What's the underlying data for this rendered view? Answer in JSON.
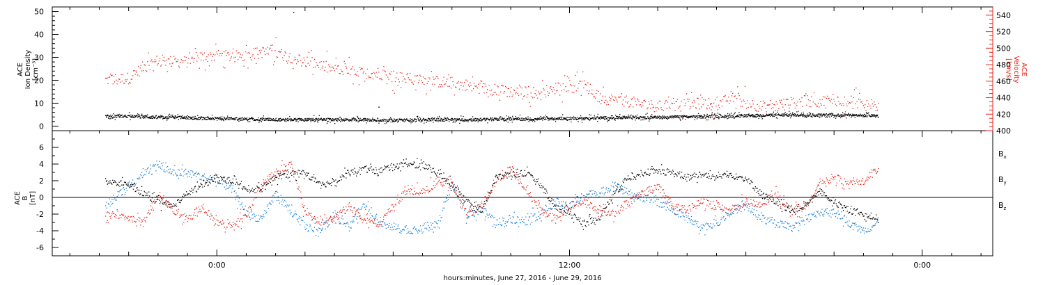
{
  "chart_data": [
    {
      "type": "scatter",
      "panel": "top",
      "ylabel": [
        "ACE",
        "Ion Density",
        "[cm⁻³]"
      ],
      "ylabel_right": [
        "ACE",
        "Velocity",
        "[km/s]"
      ],
      "ylim": [
        -2,
        52
      ],
      "y_ticks": [
        "0",
        "10",
        "20",
        "30",
        "40",
        "50"
      ],
      "y_tick_values": [
        0,
        10,
        20,
        30,
        40,
        50
      ],
      "y2lim": [
        400,
        550
      ],
      "y2_ticks": [
        "400",
        "420",
        "440",
        "460",
        "480",
        "500",
        "520",
        "540"
      ],
      "y2_tick_values": [
        400,
        420,
        440,
        460,
        480,
        500,
        520,
        540
      ],
      "series": [
        {
          "axis": "left",
          "color": "#000000",
          "x": [
            -3.8,
            -3,
            -2.5,
            -2,
            -1.5,
            -1,
            -0.5,
            0,
            0.5,
            1,
            1.5,
            2,
            2.5,
            3,
            3.5,
            4,
            4.5,
            5,
            5.5,
            6,
            6.5,
            7,
            7.5,
            8,
            8.5,
            9,
            9.5,
            10,
            10.5,
            11,
            11.5,
            12,
            12.5,
            13,
            13.5,
            14,
            14.5,
            15,
            15.5,
            16,
            16.5,
            17,
            17.5,
            18,
            18.5,
            19,
            19.5,
            20,
            20.5,
            21,
            21.5,
            22,
            22.5
          ],
          "y": [
            4.5,
            4.5,
            4.2,
            4.0,
            4.0,
            3.8,
            3.5,
            3.5,
            3.5,
            3.2,
            3.2,
            3.0,
            3.0,
            3.0,
            3.0,
            3.0,
            3.0,
            3.0,
            2.8,
            2.8,
            2.8,
            3.0,
            3.0,
            3.0,
            3.0,
            3.0,
            3.2,
            3.2,
            3.2,
            3.2,
            3.5,
            3.5,
            3.5,
            3.8,
            3.8,
            4.0,
            4.0,
            4.0,
            4.2,
            4.2,
            4.2,
            4.5,
            4.5,
            4.8,
            4.8,
            5.0,
            5.0,
            5.0,
            5.0,
            5.0,
            5.0,
            4.8,
            4.5
          ]
        },
        {
          "axis": "right",
          "color": "#e8241b",
          "x": [
            -3.8,
            -3,
            -2.5,
            -2,
            -1.5,
            -1,
            -0.5,
            0,
            0.5,
            1,
            1.5,
            2,
            2.5,
            3,
            3.5,
            4,
            4.5,
            5,
            5.5,
            6,
            6.5,
            7,
            7.5,
            8,
            8.5,
            9,
            9.5,
            10,
            10.5,
            11,
            11.5,
            12,
            12.5,
            13,
            13.5,
            14,
            14.5,
            15,
            15.5,
            16,
            16.5,
            17,
            17.5,
            18,
            18.5,
            19,
            19.5,
            20,
            20.5,
            21,
            21.5,
            22,
            22.5
          ],
          "y": [
            462,
            464,
            478,
            486,
            484,
            484,
            490,
            492,
            490,
            492,
            496,
            494,
            490,
            484,
            480,
            474,
            472,
            470,
            470,
            466,
            464,
            462,
            460,
            458,
            456,
            452,
            450,
            448,
            448,
            446,
            452,
            456,
            454,
            440,
            438,
            436,
            432,
            430,
            430,
            432,
            434,
            432,
            440,
            434,
            430,
            432,
            434,
            436,
            436,
            438,
            436,
            434,
            430
          ]
        }
      ]
    },
    {
      "type": "scatter",
      "panel": "bottom",
      "ylabel": [
        "ACE",
        "B",
        "[nT]"
      ],
      "ylim": [
        -7,
        8
      ],
      "y_ticks": [
        "-6",
        "-4",
        "-2",
        "0",
        "2",
        "4",
        "6"
      ],
      "y_tick_values": [
        -6,
        -4,
        -2,
        0,
        2,
        4,
        6
      ],
      "legend": [
        "Bx",
        "By",
        "Bz"
      ],
      "legend_placement": "right",
      "series": [
        {
          "name": "Bx",
          "color": "#000000",
          "x": [
            -3.8,
            -3,
            -2.5,
            -2,
            -1.5,
            -1,
            -0.5,
            0,
            0.5,
            1,
            1.5,
            2,
            2.5,
            3,
            3.5,
            4,
            4.5,
            5,
            5.5,
            6,
            6.5,
            7,
            7.5,
            8,
            8.5,
            9,
            9.5,
            10,
            10.5,
            11,
            11.5,
            12,
            12.5,
            13,
            13.5,
            14,
            14.5,
            15,
            15.5,
            16,
            16.5,
            17,
            17.5,
            18,
            18.5,
            19,
            19.5,
            20,
            20.5,
            21,
            21.5,
            22,
            22.5
          ],
          "y": [
            2.0,
            1.5,
            0.5,
            -0.5,
            -1.0,
            0.5,
            1.5,
            2.5,
            2.0,
            1.0,
            1.0,
            2.5,
            2.8,
            3.0,
            1.5,
            2.0,
            3.0,
            3.5,
            3.2,
            3.8,
            4.0,
            3.8,
            3.0,
            1.5,
            -0.5,
            -1.5,
            2.5,
            2.8,
            3.0,
            1.5,
            -1.0,
            -2.0,
            -3.0,
            -2.5,
            0.5,
            2.5,
            3.0,
            3.2,
            3.0,
            2.5,
            2.8,
            2.5,
            2.8,
            2.2,
            0.5,
            -0.5,
            -1.5,
            -1.0,
            0.8,
            -0.5,
            -1.5,
            -2.0,
            -2.5
          ]
        },
        {
          "name": "By",
          "color": "#1a7fd6",
          "x": [
            -3.8,
            -3,
            -2.5,
            -2,
            -1.5,
            -1,
            -0.5,
            0,
            0.5,
            1,
            1.5,
            2,
            2.5,
            3,
            3.5,
            4,
            4.5,
            5,
            5.5,
            6,
            6.5,
            7,
            7.5,
            8,
            8.5,
            9,
            9.5,
            10,
            10.5,
            11,
            11.5,
            12,
            12.5,
            13,
            13.5,
            14,
            14.5,
            15,
            15.5,
            16,
            16.5,
            17,
            17.5,
            18,
            18.5,
            19,
            19.5,
            20,
            20.5,
            21,
            21.5,
            22,
            22.5
          ],
          "y": [
            -1.0,
            1.5,
            3.0,
            4.0,
            3.0,
            3.0,
            2.5,
            2.0,
            1.0,
            -2.0,
            -2.5,
            0.5,
            -1.5,
            -3.5,
            -4.0,
            -2.0,
            -3.5,
            -1.0,
            -3.0,
            -3.5,
            -4.0,
            -3.8,
            -3.2,
            1.5,
            -2.0,
            -1.5,
            -3.0,
            -2.5,
            -2.8,
            -2.0,
            -0.5,
            -1.0,
            0.5,
            0.5,
            1.5,
            0.5,
            0.0,
            -0.5,
            -1.5,
            -2.5,
            -3.5,
            -3.0,
            -1.5,
            -1.0,
            -2.5,
            -3.0,
            -3.5,
            -2.5,
            -2.0,
            -1.5,
            -3.0,
            -4.0,
            -3.0
          ]
        },
        {
          "name": "Bz",
          "color": "#e8241b",
          "x": [
            -3.8,
            -3,
            -2.5,
            -2,
            -1.5,
            -1,
            -0.5,
            0,
            0.5,
            1,
            1.5,
            2,
            2.5,
            3,
            3.5,
            4,
            4.5,
            5,
            5.5,
            6,
            6.5,
            7,
            7.5,
            8,
            8.5,
            9,
            9.5,
            10,
            10.5,
            11,
            11.5,
            12,
            12.5,
            13,
            13.5,
            14,
            14.5,
            15,
            15.5,
            16,
            16.5,
            17,
            17.5,
            18,
            18.5,
            19,
            19.5,
            20,
            20.5,
            21,
            21.5,
            22,
            22.5
          ],
          "y": [
            -2.0,
            -2.5,
            -3.0,
            0.5,
            -1.5,
            -2.5,
            -1.0,
            -3.0,
            -3.5,
            -2.0,
            1.5,
            3.0,
            4.0,
            -1.5,
            -3.0,
            -2.5,
            -1.0,
            -2.5,
            -3.0,
            -1.0,
            1.0,
            0.5,
            2.0,
            1.5,
            -2.0,
            -1.0,
            2.0,
            3.5,
            1.0,
            -1.5,
            -2.5,
            -1.0,
            -0.5,
            -1.5,
            -2.0,
            -0.5,
            0.5,
            1.5,
            -1.0,
            -1.5,
            -0.5,
            -1.0,
            -1.5,
            -0.5,
            -1.0,
            0.5,
            -1.5,
            -1.0,
            1.5,
            2.5,
            1.5,
            2.0,
            3.5
          ]
        }
      ],
      "zero_line": true
    }
  ],
  "x_axis": {
    "xlim": [
      -5.6,
      26.4
    ],
    "ticks": [
      "0:00",
      "12:00",
      "0:00"
    ],
    "tick_hours": [
      0,
      12,
      24
    ],
    "minor_step_hours": 1,
    "label": "hours:minutes, June 27, 2016 - June 29, 2016"
  },
  "legend_labels": {
    "bx": {
      "base": "B",
      "sub": "x"
    },
    "by": {
      "base": "B",
      "sub": "y"
    },
    "bz": {
      "base": "B",
      "sub": "z"
    }
  },
  "colors": {
    "black": "#000000",
    "red": "#e8241b",
    "blue": "#1a7fd6"
  }
}
